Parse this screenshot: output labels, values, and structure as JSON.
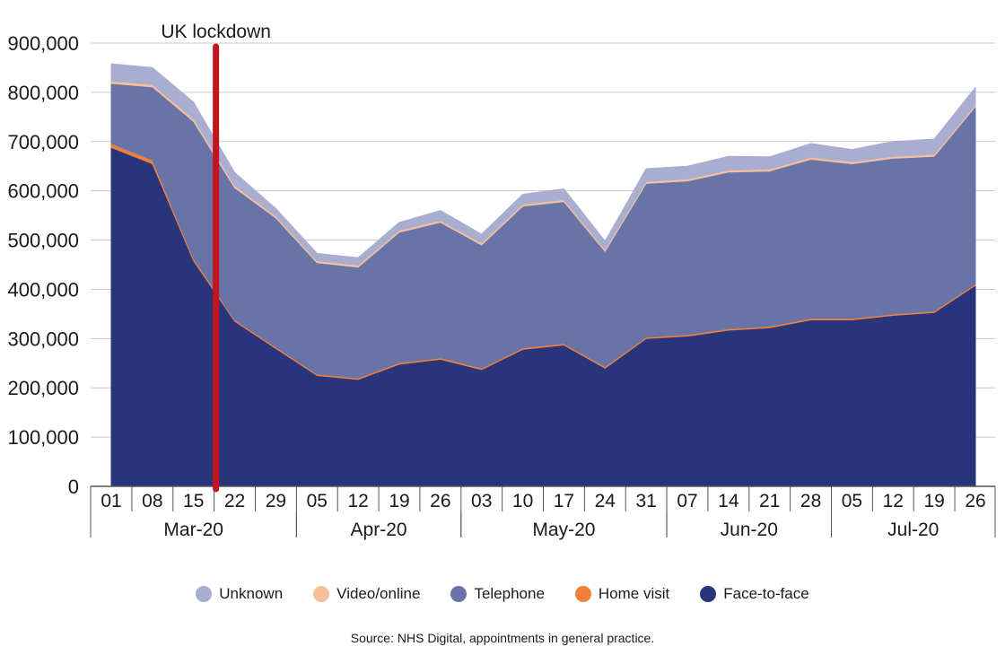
{
  "chart_data": {
    "type": "area",
    "stacked": true,
    "title": "",
    "xlabel": "",
    "ylabel": "",
    "ylim": [
      0,
      900000
    ],
    "yticks": [
      "900,000",
      "800,000",
      "700,000",
      "600,000",
      "500,000",
      "400,000",
      "300,000",
      "200,000",
      "100,000",
      "0"
    ],
    "ytick_values": [
      900000,
      800000,
      700000,
      600000,
      500000,
      400000,
      300000,
      200000,
      100000,
      0
    ],
    "grid": true,
    "legend_position": "bottom",
    "x": [
      "01",
      "08",
      "15",
      "22",
      "29",
      "05",
      "12",
      "19",
      "26",
      "03",
      "10",
      "17",
      "24",
      "31",
      "07",
      "14",
      "21",
      "28",
      "05",
      "12",
      "19",
      "26"
    ],
    "month_groups": [
      {
        "label": "Mar-20",
        "start": 0,
        "end": 4
      },
      {
        "label": "Apr-20",
        "start": 5,
        "end": 8
      },
      {
        "label": "May-20",
        "start": 9,
        "end": 13
      },
      {
        "label": "Jun-20",
        "start": 14,
        "end": 17
      },
      {
        "label": "Jul-20",
        "start": 18,
        "end": 21
      }
    ],
    "series": [
      {
        "name": "Face-to-face",
        "color": "#28357a",
        "values": [
          688000,
          655000,
          458000,
          335000,
          280000,
          225000,
          217000,
          248000,
          258000,
          237000,
          278000,
          287000,
          240000,
          300000,
          305000,
          317000,
          322000,
          338000,
          338000,
          347000,
          353000,
          408000
        ]
      },
      {
        "name": "Home visit",
        "color": "#f07f3c",
        "values": [
          8000,
          8000,
          5000,
          3000,
          3000,
          3000,
          3000,
          3000,
          3000,
          3000,
          3000,
          3000,
          3000,
          3000,
          3000,
          3000,
          3000,
          3000,
          3000,
          3000,
          3000,
          3000
        ]
      },
      {
        "name": "Telephone",
        "color": "#6874a8",
        "values": [
          122000,
          148000,
          278000,
          268000,
          262000,
          226000,
          225000,
          265000,
          275000,
          250000,
          288000,
          288000,
          234000,
          312000,
          312000,
          318000,
          315000,
          323000,
          314000,
          316000,
          314000,
          360000
        ]
      },
      {
        "name": "Video/online",
        "color": "#f6c09a",
        "values": [
          5000,
          5000,
          5000,
          5000,
          4000,
          4000,
          4000,
          4000,
          4000,
          4000,
          4000,
          4000,
          4000,
          4000,
          4000,
          4000,
          4000,
          4000,
          4000,
          4000,
          4000,
          4000
        ]
      },
      {
        "name": "Unknown",
        "color": "#a9aed0",
        "values": [
          35000,
          34000,
          34000,
          26000,
          15000,
          15000,
          15000,
          16000,
          20000,
          18000,
          20000,
          22000,
          17000,
          26000,
          26000,
          28000,
          25000,
          28000,
          25000,
          30000,
          31000,
          35000
        ]
      }
    ],
    "annotations": [
      {
        "text": "UK lockdown",
        "x_between": [
          "15",
          "22"
        ],
        "color": "#c0161e"
      }
    ]
  },
  "legend_order": [
    "Unknown",
    "Video/online",
    "Telephone",
    "Home visit",
    "Face-to-face"
  ],
  "source_text": "Source: NHS Digital, appointments in general practice."
}
